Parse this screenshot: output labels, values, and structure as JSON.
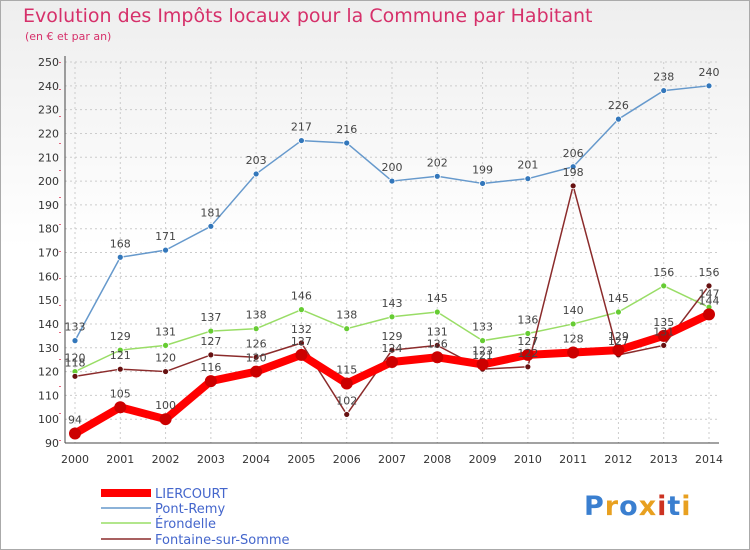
{
  "chart_data": {
    "type": "line",
    "title": "Evolution des Impôts locaux pour la Commune par Habitant",
    "subtitle": "(en € et par an)",
    "x": [
      "2000",
      "2001",
      "2002",
      "2003",
      "2004",
      "2005",
      "2006",
      "2007",
      "2008",
      "2009",
      "2010",
      "2011",
      "2012",
      "2013",
      "2014"
    ],
    "ylim": [
      90,
      250
    ],
    "yticks": [
      90,
      100,
      110,
      120,
      130,
      140,
      150,
      160,
      170,
      180,
      190,
      200,
      210,
      220,
      230,
      240,
      250
    ],
    "grid": "dashed",
    "legend_position": "bottom-left",
    "series": [
      {
        "name": "LIERCOURT",
        "color": "#ff0000",
        "marker": "#cc0000",
        "values": [
          94,
          105,
          100,
          116,
          120,
          127,
          115,
          124,
          126,
          123,
          127,
          128,
          129,
          135,
          144
        ]
      },
      {
        "name": "Pont-Remy",
        "color": "#6699cc",
        "marker": "#3377bb",
        "values": [
          133,
          168,
          171,
          181,
          203,
          217,
          216,
          200,
          202,
          199,
          201,
          206,
          226,
          238,
          240
        ]
      },
      {
        "name": "Érondelle",
        "color": "#99dd66",
        "marker": "#66cc33",
        "values": [
          120,
          129,
          131,
          137,
          138,
          146,
          138,
          143,
          145,
          133,
          136,
          140,
          145,
          156,
          147
        ]
      },
      {
        "name": "Fontaine-sur-Somme",
        "color": "#8b2b2b",
        "marker": "#661111",
        "values": [
          118,
          121,
          120,
          127,
          126,
          132,
          102,
          129,
          131,
          121,
          122,
          198,
          127,
          131,
          156
        ]
      }
    ]
  },
  "labels": {
    "LIERCOURT": [
      "94",
      "105",
      "100",
      "116",
      "120",
      "127",
      "115",
      "124",
      "126",
      "123",
      "127",
      "128",
      "129",
      "135",
      "144"
    ],
    "Pont-Remy": [
      "133",
      "168",
      "171",
      "181",
      "203",
      "217",
      "216",
      "200",
      "202",
      "199",
      "201",
      "206",
      "226",
      "238",
      "240"
    ],
    "Érondelle": [
      "120",
      "129",
      "131",
      "137",
      "138",
      "146",
      "138",
      "143",
      "145",
      "133",
      "136",
      "140",
      "145",
      "156",
      "147"
    ],
    "Fontaine-sur-Somme": [
      "118",
      "121",
      "120",
      "127",
      "126",
      "132",
      "102",
      "129",
      "131",
      "121",
      "122",
      "198",
      "127",
      "131",
      "156"
    ]
  },
  "logo": {
    "text": "Proxiti",
    "colors": [
      "#3a7fd0",
      "#e8a020",
      "#3a7fd0",
      "#e8a020",
      "#cc3322",
      "#3a7fd0",
      "#e8a020"
    ]
  }
}
